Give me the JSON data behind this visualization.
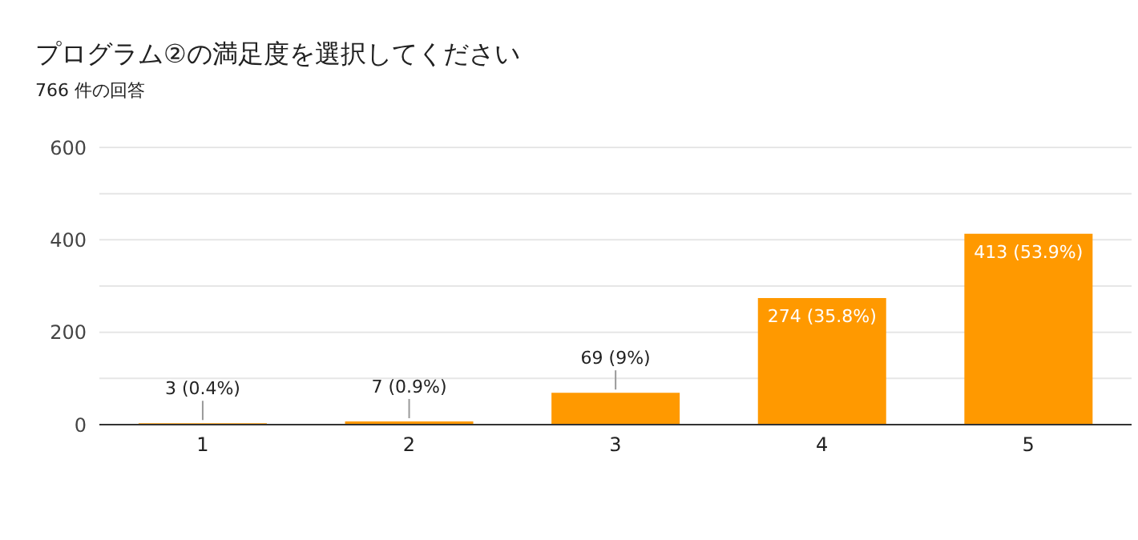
{
  "chart_data": {
    "type": "bar",
    "title": "プログラム②の満足度を選択してください",
    "subtitle": "766 件の回答",
    "categories": [
      "1",
      "2",
      "3",
      "4",
      "5"
    ],
    "values": [
      3,
      7,
      69,
      274,
      413
    ],
    "value_labels": [
      "3 (0.4%)",
      "7 (0.9%)",
      "69 (9%)",
      "274 (35.8%)",
      "413 (53.9%)"
    ],
    "color": "#ff9900",
    "ylim": [
      0,
      600
    ],
    "yticks": [
      0,
      {
        "value": 100,
        "label": null
      },
      200,
      {
        "value": 300,
        "label": null
      },
      400,
      {
        "value": 500,
        "label": null
      },
      600
    ],
    "grid": "y"
  }
}
